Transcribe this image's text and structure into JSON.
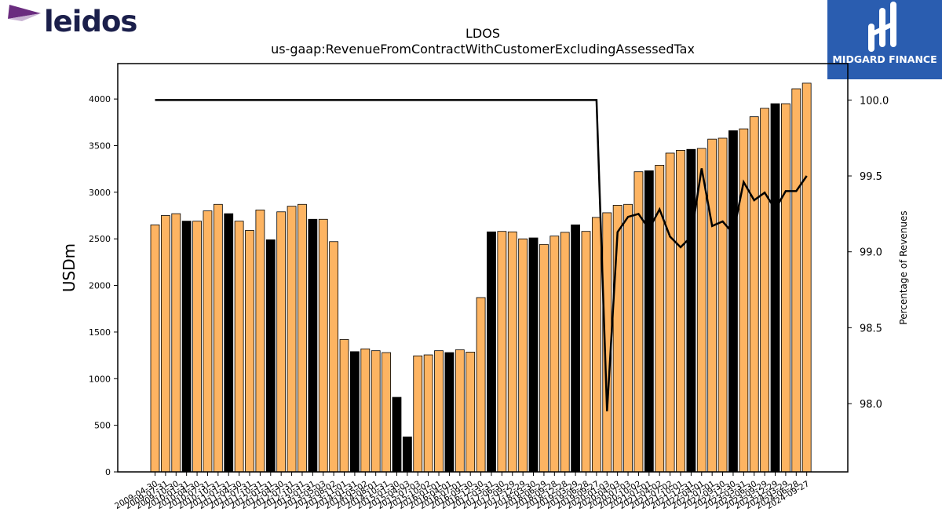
{
  "branding": {
    "left_logo_text": "leidos",
    "right_logo_text": "MIDGARD FINANCE",
    "right_logo_color": "#2a5db0"
  },
  "chart_data": {
    "type": "bar",
    "title": "LDOS",
    "subtitle": "us-gaap:RevenueFromContractWithCustomerExcludingAssessedTax",
    "ylabel": "USDm",
    "y2label": "Percentage of Revenues",
    "ylim": [
      0,
      4380
    ],
    "y2lim": [
      97.55,
      100.24
    ],
    "yticks": [
      0,
      500,
      1000,
      1500,
      2000,
      2500,
      3000,
      3500,
      4000
    ],
    "y2ticks": [
      "98.0",
      "98.5",
      "99.0",
      "99.5",
      "100.0"
    ],
    "bar_colors": {
      "quarter": "#fdb462",
      "annual": "#000000"
    },
    "categories": [
      "2009-04-30",
      "2009-07-31",
      "2009-10-30",
      "2010-01-31",
      "2010-04-30",
      "2010-07-31",
      "2010-10-31",
      "2011-01-31",
      "2011-04-30",
      "2011-07-31",
      "2011-10-31",
      "2012-01-31",
      "2012-04-30",
      "2012-07-31",
      "2012-10-31",
      "2013-01-31",
      "2013-05-03",
      "2013-08-02",
      "2013-11-01",
      "2014-01-31",
      "2014-05-02",
      "2014-08-01",
      "2014-10-31",
      "2015-01-30",
      "2015-04-03",
      "2015-07-03",
      "2015-10-02",
      "2016-01-01",
      "2016-04-01",
      "2016-07-01",
      "2016-09-30",
      "2016-12-30",
      "2017-03-31",
      "2017-06-30",
      "2017-09-29",
      "2017-12-29",
      "2018-03-30",
      "2018-06-29",
      "2018-09-28",
      "2018-12-28",
      "2019-03-29",
      "2019-06-28",
      "2019-09-27",
      "2020-01-03",
      "2020-04-03",
      "2020-07-03",
      "2020-10-02",
      "2021-01-01",
      "2021-04-02",
      "2021-07-02",
      "2021-10-01",
      "2021-12-31",
      "2022-04-01",
      "2022-07-01",
      "2022-09-30",
      "2022-12-30",
      "2023-03-31",
      "2023-06-30",
      "2023-09-29",
      "2023-12-29",
      "2024-03-29",
      "2024-06-28",
      "2024-09-27"
    ],
    "values": [
      2650,
      2750,
      2770,
      2690,
      2690,
      2800,
      2870,
      2770,
      2690,
      2590,
      2810,
      2490,
      2790,
      2850,
      2870,
      2710,
      2710,
      2470,
      1420,
      1290,
      1320,
      1300,
      1280,
      800,
      375,
      1245,
      1255,
      1300,
      1280,
      1310,
      1285,
      1870,
      2575,
      2580,
      2575,
      2500,
      2510,
      2440,
      2530,
      2570,
      2650,
      2580,
      2730,
      2780,
      2860,
      2870,
      3220,
      3230,
      3290,
      3420,
      3450,
      3460,
      3470,
      3570,
      3580,
      3660,
      3680,
      3810,
      3900,
      3950,
      3950,
      4110,
      4170
    ],
    "is_annual": [
      false,
      false,
      false,
      true,
      false,
      false,
      false,
      true,
      false,
      false,
      false,
      true,
      false,
      false,
      false,
      true,
      false,
      false,
      false,
      true,
      false,
      false,
      false,
      true,
      true,
      false,
      false,
      false,
      true,
      false,
      false,
      false,
      true,
      false,
      false,
      false,
      true,
      false,
      false,
      false,
      true,
      false,
      false,
      false,
      false,
      false,
      false,
      true,
      false,
      false,
      false,
      true,
      false,
      false,
      false,
      true,
      false,
      false,
      false,
      true,
      false,
      false,
      false
    ],
    "series": [
      {
        "name": "Percentage of Revenues",
        "axis": "right",
        "type": "line",
        "color": "#000000",
        "values": [
          100,
          100,
          100,
          100,
          100,
          100,
          100,
          100,
          100,
          100,
          100,
          100,
          100,
          100,
          100,
          100,
          100,
          100,
          100,
          100,
          100,
          100,
          100,
          100,
          100,
          100,
          100,
          100,
          100,
          100,
          100,
          100,
          100,
          100,
          100,
          100,
          100,
          100,
          100,
          100,
          100,
          100,
          100,
          97.95,
          99.13,
          99.23,
          99.25,
          99.15,
          99.28,
          99.1,
          99.03,
          99.1,
          99.55,
          99.17,
          99.2,
          99.12,
          99.46,
          99.34,
          99.39,
          99.28,
          99.4,
          99.4,
          99.5
        ]
      }
    ]
  }
}
